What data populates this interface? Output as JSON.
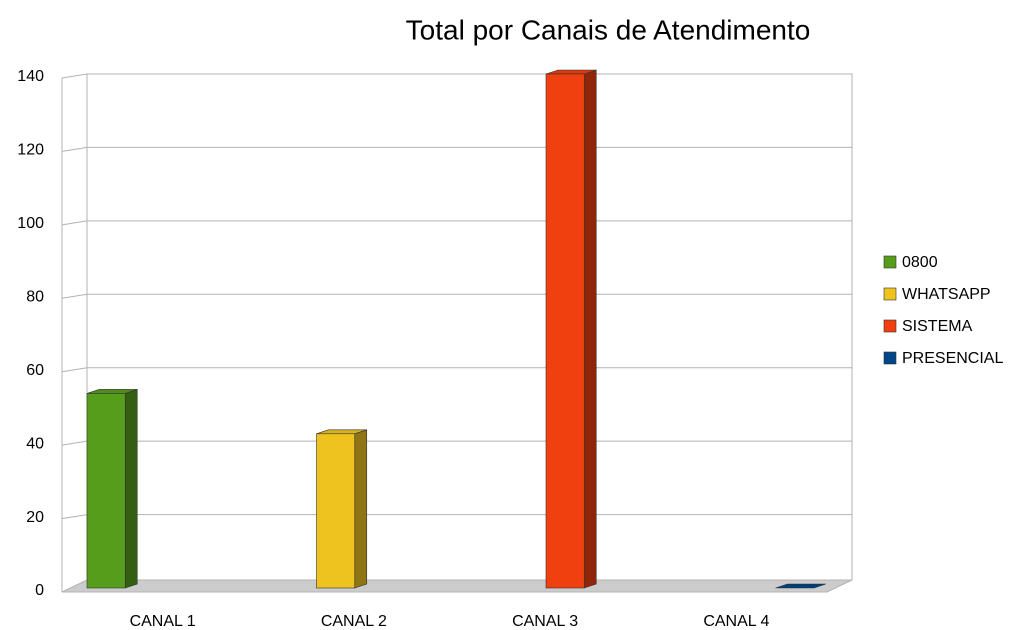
{
  "chart_data": {
    "type": "bar3d",
    "title": "Total por Canais de Atendimento",
    "categories": [
      "CANAL 1",
      "CANAL 2",
      "CANAL 3",
      "CANAL 4"
    ],
    "series": [
      {
        "name": "0800",
        "color": "#579d1c",
        "values": [
          53,
          null,
          null,
          null
        ]
      },
      {
        "name": "WHATSAPP",
        "color": "#eec320",
        "values": [
          null,
          42,
          null,
          null
        ]
      },
      {
        "name": "SISTEMA",
        "color": "#f0400f",
        "values": [
          null,
          null,
          140,
          null
        ]
      },
      {
        "name": "PRESENCIAL",
        "color": "#004586",
        "values": [
          null,
          null,
          null,
          0
        ]
      }
    ],
    "ylim": [
      0,
      140
    ],
    "yticks": [
      0,
      20,
      40,
      60,
      80,
      100,
      120,
      140
    ],
    "grid": true,
    "legend": "right"
  }
}
